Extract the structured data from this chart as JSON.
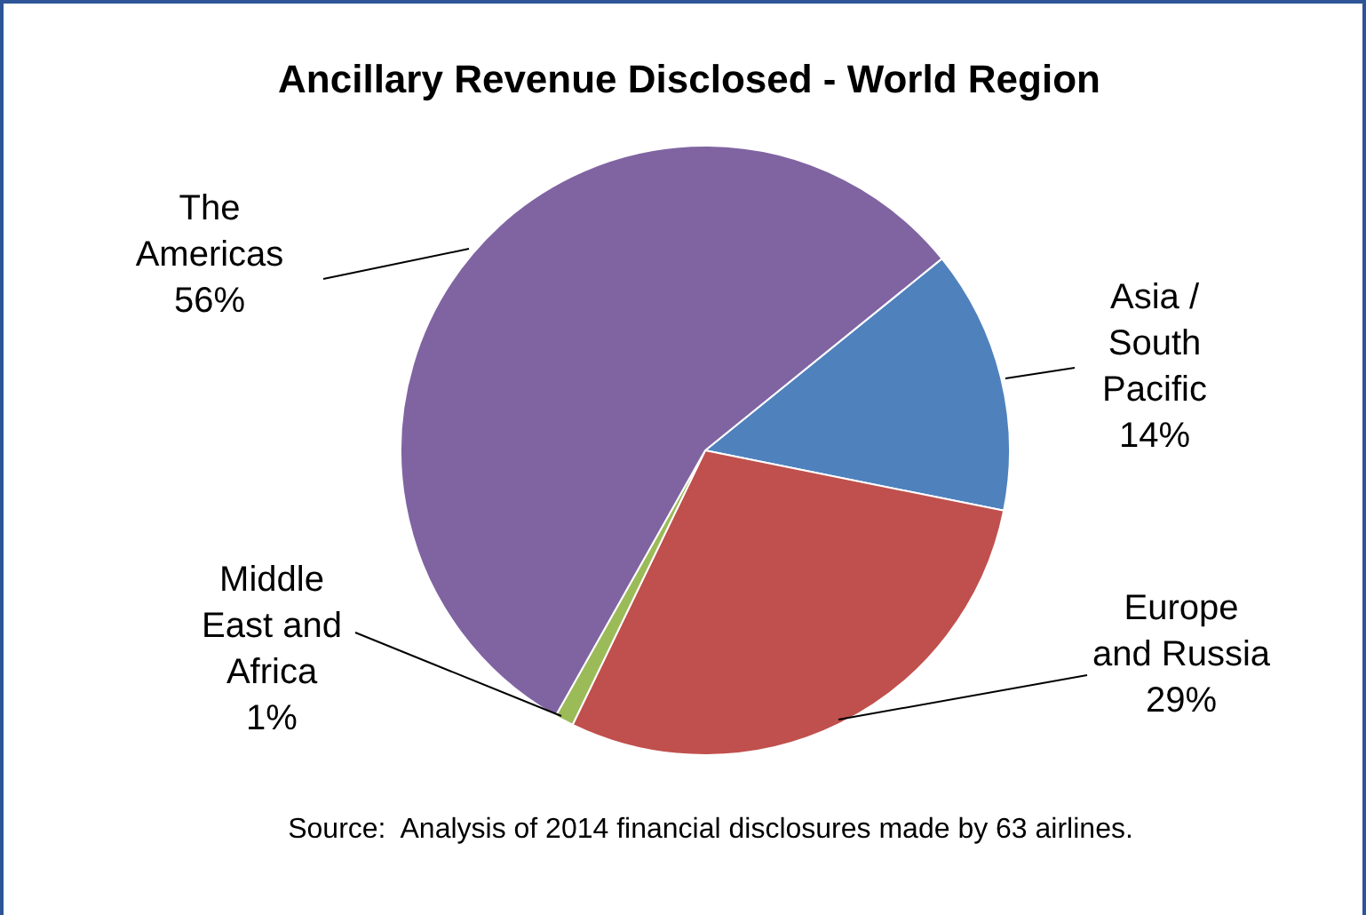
{
  "chart_data": {
    "type": "pie",
    "title": "Ancillary Revenue Disclosed - World Region",
    "categories": [
      "Asia / South Pacific",
      "Europe and Russia",
      "Middle East and Africa",
      "The Americas"
    ],
    "values": [
      14,
      29,
      1,
      56
    ],
    "colors": [
      "#4f81bd",
      "#c0504d",
      "#9bbb59",
      "#8064a2"
    ],
    "value_labels": [
      "14%",
      "29%",
      "1%",
      "56%"
    ],
    "legend": false,
    "annotations": [
      "Source:  Analysis of 2014 financial disclosures made by 63 airlines."
    ]
  }
}
